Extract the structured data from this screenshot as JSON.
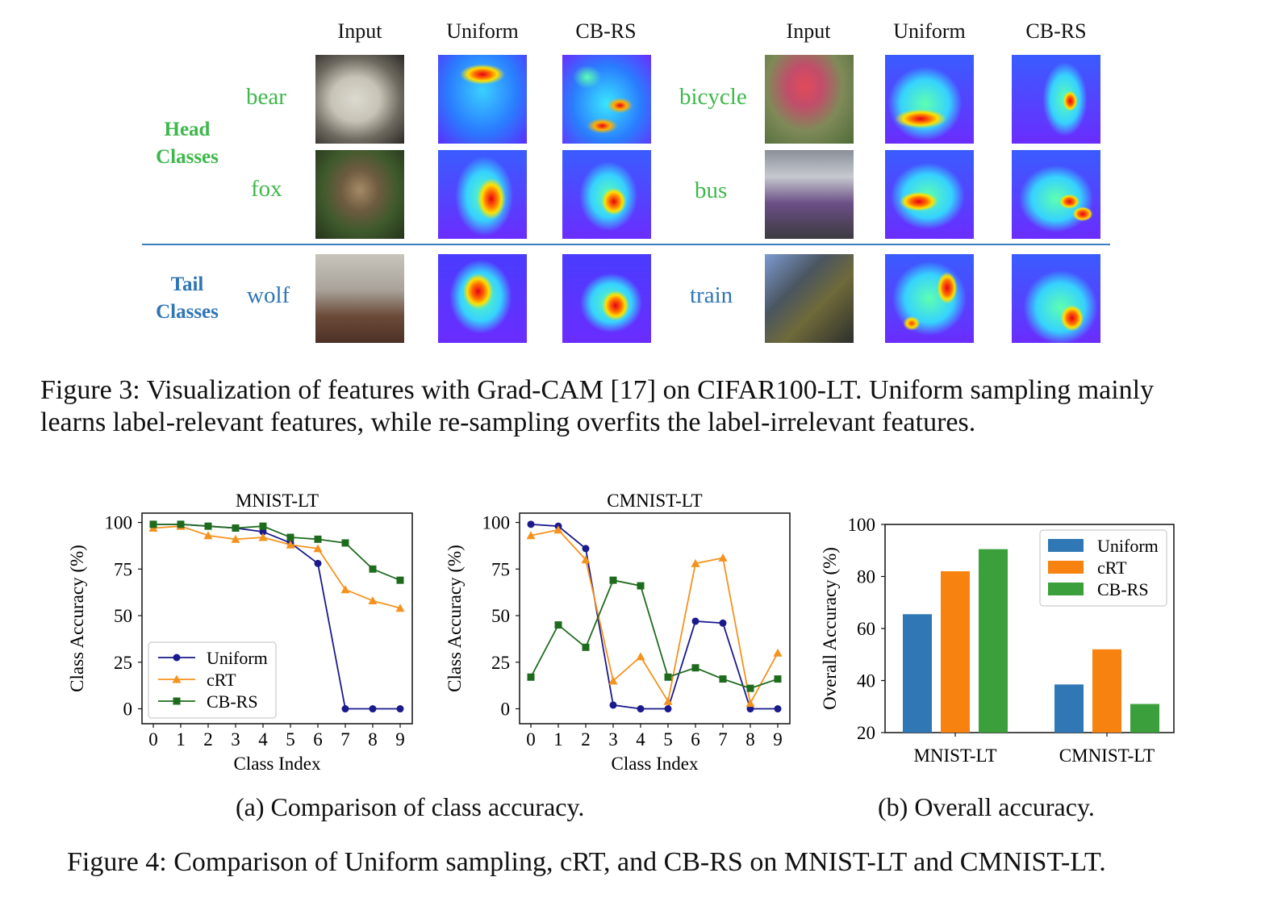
{
  "figure3": {
    "col_headers": [
      "Input",
      "Uniform",
      "CB-RS",
      "Input",
      "Uniform",
      "CB-RS"
    ],
    "groups": {
      "head": [
        "Head",
        "Classes"
      ],
      "tail": [
        "Tail",
        "Classes"
      ]
    },
    "classes": {
      "bear": "bear",
      "fox": "fox",
      "bicycle": "bicycle",
      "bus": "bus",
      "wolf": "wolf",
      "train": "train"
    },
    "colors": {
      "head": "#3db84a",
      "tail": "#2e75b6"
    },
    "caption_line1": "Figure 3: Visualization of features with Grad-CAM [17] on CIFAR100-LT. Uniform sampling mainly",
    "caption_line2": "learns label-relevant features, while re-sampling overfits the label-irrelevant features."
  },
  "figure4": {
    "subcaption_a": "(a) Comparison of class accuracy.",
    "subcaption_b": "(b) Overall accuracy.",
    "caption": "Figure 4: Comparison of Uniform sampling, cRT, and CB-RS on MNIST-LT and CMNIST-LT."
  },
  "chart_data": [
    {
      "type": "line",
      "title": "MNIST-LT",
      "xlabel": "Class Index",
      "ylabel": "Class Accuracy (%)",
      "x": [
        0,
        1,
        2,
        3,
        4,
        5,
        6,
        7,
        8,
        9
      ],
      "xticks": [
        "0",
        "1",
        "2",
        "3",
        "4",
        "5",
        "6",
        "7",
        "8",
        "9"
      ],
      "yticks": [
        "0",
        "25",
        "50",
        "75",
        "100"
      ],
      "ylim": [
        -8,
        105
      ],
      "legend": "lower-left",
      "series": [
        {
          "name": "Uniform",
          "color": "#1a1a8c",
          "marker": "circle",
          "values": [
            99,
            99,
            98,
            97,
            95,
            89,
            78,
            0,
            0,
            0
          ]
        },
        {
          "name": "cRT",
          "color": "#f5921e",
          "marker": "triangle",
          "values": [
            97,
            98,
            93,
            91,
            92,
            88,
            86,
            64,
            58,
            54
          ]
        },
        {
          "name": "CB-RS",
          "color": "#1e6b1e",
          "marker": "square",
          "values": [
            99,
            99,
            98,
            97,
            98,
            92,
            91,
            89,
            75,
            69
          ]
        }
      ]
    },
    {
      "type": "line",
      "title": "CMNIST-LT",
      "xlabel": "Class Index",
      "ylabel": "Class Accuracy (%)",
      "x": [
        0,
        1,
        2,
        3,
        4,
        5,
        6,
        7,
        8,
        9
      ],
      "xticks": [
        "0",
        "1",
        "2",
        "3",
        "4",
        "5",
        "6",
        "7",
        "8",
        "9"
      ],
      "yticks": [
        "0",
        "25",
        "50",
        "75",
        "100"
      ],
      "ylim": [
        -8,
        105
      ],
      "series": [
        {
          "name": "Uniform",
          "color": "#1a1a8c",
          "marker": "circle",
          "values": [
            99,
            98,
            86,
            2,
            0,
            0,
            47,
            46,
            0,
            0
          ]
        },
        {
          "name": "cRT",
          "color": "#f5921e",
          "marker": "triangle",
          "values": [
            93,
            96,
            80,
            15,
            28,
            4,
            78,
            81,
            3,
            30
          ]
        },
        {
          "name": "CB-RS",
          "color": "#1e6b1e",
          "marker": "square",
          "values": [
            17,
            45,
            33,
            69,
            66,
            17,
            22,
            16,
            11,
            16
          ]
        }
      ]
    },
    {
      "type": "bar",
      "xlabel": "",
      "ylabel": "Overall Accuracy (%)",
      "categories": [
        "MNIST-LT",
        "CMNIST-LT"
      ],
      "yticks": [
        "20",
        "40",
        "60",
        "80",
        "100"
      ],
      "ylim": [
        20,
        100
      ],
      "legend": "top-right",
      "series": [
        {
          "name": "Uniform",
          "color": "#2f78b5",
          "values": [
            65.5,
            38.5
          ]
        },
        {
          "name": "cRT",
          "color": "#f7820f",
          "values": [
            82,
            52
          ]
        },
        {
          "name": "CB-RS",
          "color": "#3ba03b",
          "values": [
            90.5,
            31
          ]
        }
      ]
    }
  ]
}
